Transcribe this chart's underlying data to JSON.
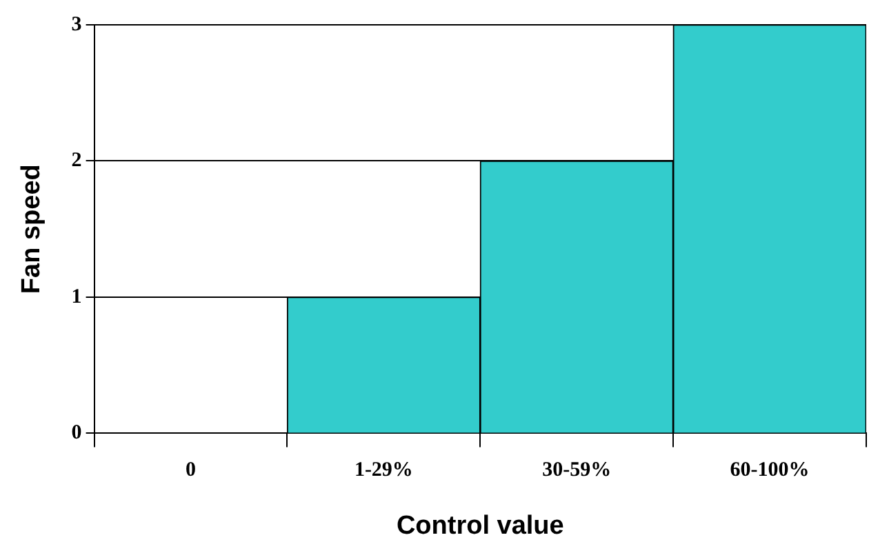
{
  "chart_data": {
    "type": "bar",
    "xlabel": "Control value",
    "ylabel": "Fan speed",
    "categories": [
      "0",
      "1-29%",
      "30-59%",
      "60-100%"
    ],
    "values": [
      0,
      1,
      2,
      3
    ],
    "color": "#33cccc",
    "ylim": [
      0,
      3
    ],
    "yticks": [
      0,
      1,
      2,
      3
    ],
    "grid": "y",
    "legend": false
  }
}
